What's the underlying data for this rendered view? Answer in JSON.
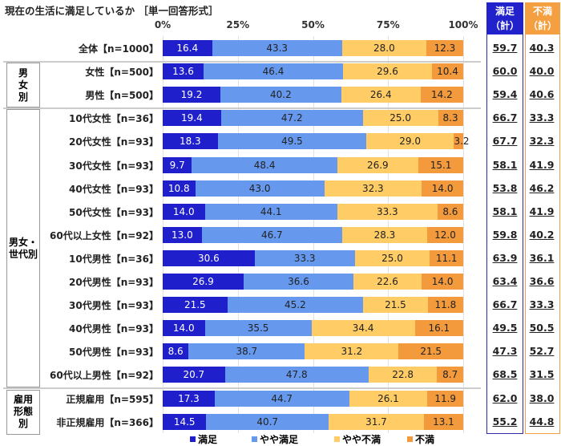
{
  "chart_data": {
    "type": "bar",
    "stacked": true,
    "orientation": "horizontal",
    "title": "現在の生活に満足しているか ［単一回答形式］",
    "xlim": [
      0,
      100
    ],
    "x_ticks": [
      "0%",
      "25%",
      "50%",
      "75%",
      "100%"
    ],
    "colors": {
      "満足": "#1f1fcc",
      "やや満足": "#6699ee",
      "やや不満": "#ffcc66",
      "不満": "#f39a3c"
    },
    "series_names": [
      "満足",
      "やや満足",
      "やや不満",
      "不満"
    ],
    "groups": [
      {
        "label": "",
        "rows": [
          0
        ]
      },
      {
        "label": "男女別",
        "rows": [
          1,
          2
        ]
      },
      {
        "label": "男女・世代別",
        "rows": [
          3,
          4,
          5,
          6,
          7,
          8,
          9,
          10,
          11,
          12,
          13,
          14
        ]
      },
      {
        "label": "雇用形態別",
        "rows": [
          15,
          16
        ]
      }
    ],
    "total_headers": {
      "satisfied": "満足（計）",
      "dissatisfied": "不満（計）"
    },
    "rows": [
      {
        "label": "全体【n=1000】",
        "values": [
          16.4,
          43.3,
          28.0,
          12.3
        ],
        "satisfied": "59.7",
        "dissatisfied": "40.3"
      },
      {
        "label": "女性【n=500】",
        "values": [
          13.6,
          46.4,
          29.6,
          10.4
        ],
        "satisfied": "60.0",
        "dissatisfied": "40.0"
      },
      {
        "label": "男性【n=500】",
        "values": [
          19.2,
          40.2,
          26.4,
          14.2
        ],
        "satisfied": "59.4",
        "dissatisfied": "40.6"
      },
      {
        "label": "10代女性【n=36】",
        "values": [
          19.4,
          47.2,
          25.0,
          8.3
        ],
        "satisfied": "66.7",
        "dissatisfied": "33.3"
      },
      {
        "label": "20代女性【n=93】",
        "values": [
          18.3,
          49.5,
          29.0,
          3.2
        ],
        "satisfied": "67.7",
        "dissatisfied": "32.3"
      },
      {
        "label": "30代女性【n=93】",
        "values": [
          9.7,
          48.4,
          26.9,
          15.1
        ],
        "satisfied": "58.1",
        "dissatisfied": "41.9"
      },
      {
        "label": "40代女性【n=93】",
        "values": [
          10.8,
          43.0,
          32.3,
          14.0
        ],
        "satisfied": "53.8",
        "dissatisfied": "46.2"
      },
      {
        "label": "50代女性【n=93】",
        "values": [
          14.0,
          44.1,
          33.3,
          8.6
        ],
        "satisfied": "58.1",
        "dissatisfied": "41.9"
      },
      {
        "label": "60代以上女性【n=92】",
        "values": [
          13.0,
          46.7,
          28.3,
          12.0
        ],
        "satisfied": "59.8",
        "dissatisfied": "40.2"
      },
      {
        "label": "10代男性【n=36】",
        "values": [
          30.6,
          33.3,
          25.0,
          11.1
        ],
        "satisfied": "63.9",
        "dissatisfied": "36.1"
      },
      {
        "label": "20代男性【n=93】",
        "values": [
          26.9,
          36.6,
          22.6,
          14.0
        ],
        "satisfied": "63.4",
        "dissatisfied": "36.6"
      },
      {
        "label": "30代男性【n=93】",
        "values": [
          21.5,
          45.2,
          21.5,
          11.8
        ],
        "satisfied": "66.7",
        "dissatisfied": "33.3"
      },
      {
        "label": "40代男性【n=93】",
        "values": [
          14.0,
          35.5,
          34.4,
          16.1
        ],
        "satisfied": "49.5",
        "dissatisfied": "50.5"
      },
      {
        "label": "50代男性【n=93】",
        "values": [
          8.6,
          38.7,
          31.2,
          21.5
        ],
        "satisfied": "47.3",
        "dissatisfied": "52.7"
      },
      {
        "label": "60代以上男性【n=92】",
        "values": [
          20.7,
          47.8,
          22.8,
          8.7
        ],
        "satisfied": "68.5",
        "dissatisfied": "31.5"
      },
      {
        "label": "正規雇用【n=595】",
        "values": [
          17.3,
          44.7,
          26.1,
          11.9
        ],
        "satisfied": "62.0",
        "dissatisfied": "38.0"
      },
      {
        "label": "非正規雇用【n=366】",
        "values": [
          14.5,
          40.7,
          31.7,
          13.1
        ],
        "satisfied": "55.2",
        "dissatisfied": "44.8"
      }
    ]
  }
}
